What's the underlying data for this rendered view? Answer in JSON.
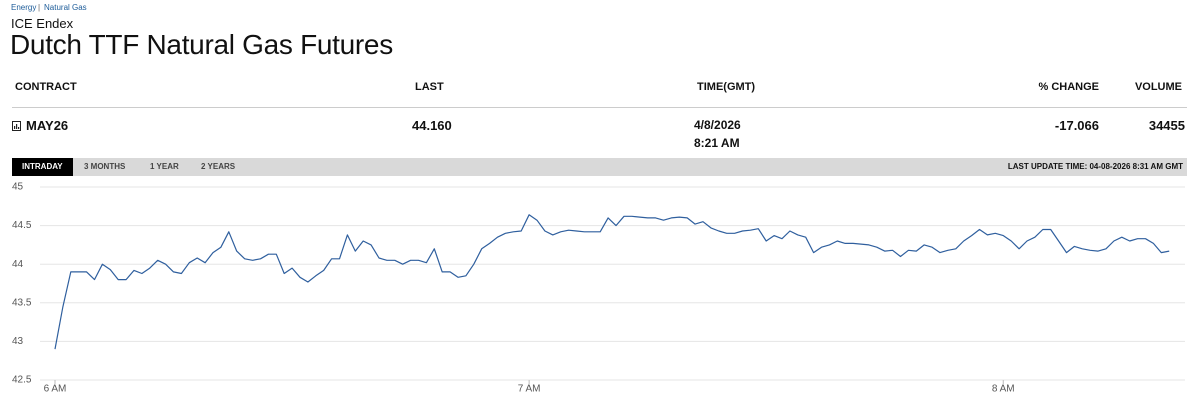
{
  "breadcrumb": {
    "items": [
      "Energy",
      "Natural Gas"
    ],
    "separator": "|"
  },
  "header": {
    "exchange": "ICE Endex",
    "title": "Dutch TTF Natural Gas Futures"
  },
  "table": {
    "columns": [
      "CONTRACT",
      "LAST",
      "TIME(GMT)",
      "% CHANGE",
      "VOLUME"
    ],
    "rows": [
      {
        "contract": "MAY26",
        "last": "44.160",
        "date": "4/8/2026",
        "time": "8:21 AM",
        "change": "-17.066",
        "volume": "34455"
      }
    ]
  },
  "tabs": {
    "items": [
      "INTRADAY",
      "3 MONTHS",
      "1 YEAR",
      "2 YEARS"
    ],
    "active": 0
  },
  "last_update": "LAST UPDATE TIME: 04-08-2026 8:31 AM GMT",
  "chart_data": {
    "type": "line",
    "color": "#2f5f9e",
    "grid": true,
    "x": [
      360,
      361,
      362,
      363,
      364,
      365,
      366,
      367,
      368,
      369,
      370,
      371,
      372,
      373,
      374,
      375,
      376,
      377,
      378,
      379,
      380,
      381,
      382,
      383,
      384,
      385,
      386,
      387,
      388,
      389,
      390,
      391,
      392,
      393,
      394,
      395,
      396,
      397,
      398,
      399,
      400,
      401,
      402,
      403,
      404,
      405,
      406,
      407,
      408,
      409,
      410,
      411,
      412,
      413,
      414,
      415,
      416,
      417,
      418,
      419,
      420,
      421,
      422,
      423,
      424,
      425,
      426,
      427,
      428,
      429,
      430,
      431,
      432,
      433,
      434,
      435,
      436,
      437,
      438,
      439,
      440,
      441,
      442,
      443,
      444,
      445,
      446,
      447,
      448,
      449,
      450,
      451,
      452,
      453,
      454,
      455,
      456,
      457,
      458,
      459,
      460,
      461,
      462,
      463,
      464,
      465,
      466,
      467,
      468,
      469,
      470,
      471,
      472,
      473,
      474,
      475,
      476,
      477,
      478,
      479,
      480,
      481,
      482,
      483,
      484,
      485,
      486,
      487,
      488,
      489,
      490,
      491,
      492,
      493,
      494,
      495,
      496,
      497,
      498,
      499,
      500,
      501
    ],
    "values": [
      42.9,
      43.45,
      43.9,
      43.9,
      43.9,
      43.8,
      44.0,
      43.93,
      43.8,
      43.8,
      43.92,
      43.88,
      43.95,
      44.05,
      44.0,
      43.9,
      43.88,
      44.02,
      44.08,
      44.02,
      44.15,
      44.22,
      44.42,
      44.17,
      44.07,
      44.05,
      44.07,
      44.13,
      44.13,
      43.88,
      43.95,
      43.83,
      43.77,
      43.85,
      43.92,
      44.07,
      44.07,
      44.38,
      44.17,
      44.3,
      44.25,
      44.08,
      44.05,
      44.05,
      44.0,
      44.05,
      44.05,
      44.02,
      44.2,
      43.9,
      43.9,
      43.83,
      43.85,
      44.0,
      44.2,
      44.27,
      44.35,
      44.4,
      44.42,
      44.43,
      44.64,
      44.57,
      44.43,
      44.38,
      44.42,
      44.44,
      44.43,
      44.42,
      44.42,
      44.42,
      44.6,
      44.5,
      44.62,
      44.62,
      44.61,
      44.6,
      44.6,
      44.57,
      44.6,
      44.61,
      44.6,
      44.52,
      44.55,
      44.47,
      44.43,
      44.4,
      44.4,
      44.43,
      44.44,
      44.46,
      44.3,
      44.37,
      44.33,
      44.43,
      44.38,
      44.35,
      44.15,
      44.22,
      44.25,
      44.3,
      44.27,
      44.27,
      44.26,
      44.25,
      44.22,
      44.17,
      44.18,
      44.1,
      44.18,
      44.17,
      44.25,
      44.22,
      44.15,
      44.18,
      44.2,
      44.3,
      44.37,
      44.45,
      44.38,
      44.4,
      44.37,
      44.3,
      44.2,
      44.3,
      44.35,
      44.45,
      44.45,
      44.3,
      44.15,
      44.23,
      44.2,
      44.18,
      44.17,
      44.2,
      44.3,
      44.35,
      44.3,
      44.33,
      44.33,
      44.27,
      44.15,
      44.17
    ],
    "xlim": [
      360,
      503
    ],
    "xticks": [
      {
        "value": 360,
        "label": "6 AM"
      },
      {
        "value": 420,
        "label": "7 AM"
      },
      {
        "value": 480,
        "label": "8 AM"
      }
    ],
    "ylim": [
      42.5,
      45
    ],
    "yticks": [
      42.5,
      43,
      43.5,
      44,
      44.5,
      45
    ]
  }
}
